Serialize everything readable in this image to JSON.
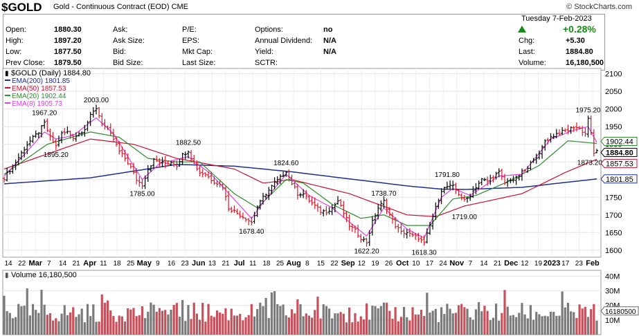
{
  "header": {
    "symbol": "$GOLD",
    "name": "Gold - Continuous Contract (EOD)",
    "exchange": "CME",
    "brand": "© StockCharts.com",
    "date": "Tuesday   7-Feb-2023",
    "change_pct": "+0.28%"
  },
  "quote": {
    "col1": [
      [
        "Open:",
        "1880.30"
      ],
      [
        "High:",
        "1897.20"
      ],
      [
        "Low:",
        "1877.50"
      ],
      [
        "Prev Close:",
        "1879.50"
      ]
    ],
    "col2": [
      [
        "Ask:",
        ""
      ],
      [
        "Ask Size:",
        ""
      ],
      [
        "Bid:",
        ""
      ],
      [
        "Bid Size:",
        ""
      ]
    ],
    "col3": [
      [
        "P/E:",
        ""
      ],
      [
        "EPS:",
        ""
      ],
      [
        "Mkt Cap:",
        ""
      ],
      [
        "Last Size:",
        ""
      ]
    ],
    "col4": [
      [
        "Options:",
        "no"
      ],
      [
        "Annual Dividend:",
        "N/A"
      ],
      [
        "Yield:",
        "N/A"
      ],
      [
        "SCTR:",
        ""
      ]
    ],
    "col5": [
      [
        "Chg:",
        "+5.30"
      ],
      [
        "Last:",
        "1884.80"
      ],
      [
        "Volume:",
        "16,180,500"
      ]
    ]
  },
  "legend": [
    {
      "label": "$GOLD (Daily) 1884.80",
      "color": "#000000"
    },
    {
      "label": "EMA(200) 1801.85",
      "color": "#1f2e8c"
    },
    {
      "label": "EMA(50) 1857.53",
      "color": "#c8102e"
    },
    {
      "label": "EMA(20) 1902.44",
      "color": "#2e8b2e"
    },
    {
      "label": "EMA(8) 1905.73",
      "color": "#e040e0"
    }
  ],
  "volume_legend": "Volume 16,180,500",
  "colors": {
    "up": "#000000",
    "down": "#d11a2a",
    "vol_up": "#7a7a7a",
    "vol_down": "#c9505a"
  },
  "chart_data": {
    "type": "line",
    "x_tick_labels": [
      "14",
      "22",
      "Mar",
      "7",
      "14",
      "21",
      "Apr",
      "11",
      "18",
      "25",
      "May",
      "9",
      "16",
      "23",
      "Jun",
      "13",
      "21",
      "Jul",
      "11",
      "18",
      "25",
      "Aug",
      "8",
      "15",
      "22",
      "Sep",
      "12",
      "19",
      "26",
      "Oct",
      "10",
      "17",
      "24",
      "Nov",
      "7",
      "14",
      "21",
      "Dec",
      "12",
      "19",
      "2023",
      "17",
      "23",
      "Feb"
    ],
    "y_ticks": [
      1600,
      1650,
      1700,
      1750,
      1800,
      1850,
      1900,
      1950,
      2000,
      2050,
      2100
    ],
    "ylim": [
      1580,
      2115
    ],
    "price_path": [
      [
        0,
        1805
      ],
      [
        4,
        1850
      ],
      [
        8,
        1900
      ],
      [
        12,
        1935
      ],
      [
        14,
        1960
      ],
      [
        16,
        1920
      ],
      [
        18,
        1895
      ],
      [
        20,
        1930
      ],
      [
        22,
        1935
      ],
      [
        24,
        1920
      ],
      [
        26,
        1930
      ],
      [
        28,
        1945
      ],
      [
        30,
        1980
      ],
      [
        32,
        2003
      ],
      [
        34,
        1960
      ],
      [
        36,
        1940
      ],
      [
        38,
        1915
      ],
      [
        40,
        1880
      ],
      [
        42,
        1860
      ],
      [
        44,
        1835
      ],
      [
        46,
        1800
      ],
      [
        48,
        1785
      ],
      [
        50,
        1830
      ],
      [
        52,
        1855
      ],
      [
        54,
        1850
      ],
      [
        56,
        1845
      ],
      [
        58,
        1850
      ],
      [
        60,
        1840
      ],
      [
        62,
        1870
      ],
      [
        64,
        1882.5
      ],
      [
        66,
        1845
      ],
      [
        68,
        1820
      ],
      [
        70,
        1815
      ],
      [
        72,
        1800
      ],
      [
        74,
        1790
      ],
      [
        76,
        1780
      ],
      [
        78,
        1720
      ],
      [
        80,
        1710
      ],
      [
        82,
        1700
      ],
      [
        84,
        1690
      ],
      [
        86,
        1678.4
      ],
      [
        88,
        1720
      ],
      [
        90,
        1750
      ],
      [
        92,
        1770
      ],
      [
        94,
        1790
      ],
      [
        96,
        1805
      ],
      [
        98,
        1824.6
      ],
      [
        100,
        1790
      ],
      [
        102,
        1760
      ],
      [
        104,
        1760
      ],
      [
        106,
        1740
      ],
      [
        108,
        1725
      ],
      [
        110,
        1710
      ],
      [
        112,
        1710
      ],
      [
        114,
        1720
      ],
      [
        116,
        1740
      ],
      [
        118,
        1705
      ],
      [
        120,
        1670
      ],
      [
        122,
        1655
      ],
      [
        124,
        1635
      ],
      [
        126,
        1622.2
      ],
      [
        128,
        1680
      ],
      [
        130,
        1720
      ],
      [
        132,
        1738.7
      ],
      [
        134,
        1700
      ],
      [
        136,
        1670
      ],
      [
        138,
        1650
      ],
      [
        140,
        1650
      ],
      [
        142,
        1640
      ],
      [
        144,
        1635
      ],
      [
        146,
        1618.3
      ],
      [
        148,
        1670
      ],
      [
        150,
        1720
      ],
      [
        152,
        1770
      ],
      [
        154,
        1780
      ],
      [
        156,
        1780
      ],
      [
        158,
        1760
      ],
      [
        160,
        1740
      ],
      [
        162,
        1755
      ],
      [
        164,
        1780
      ],
      [
        166,
        1800
      ],
      [
        168,
        1795
      ],
      [
        170,
        1810
      ],
      [
        172,
        1820
      ],
      [
        174,
        1790
      ],
      [
        176,
        1800
      ],
      [
        178,
        1800
      ],
      [
        180,
        1820
      ],
      [
        182,
        1830
      ],
      [
        184,
        1860
      ],
      [
        186,
        1870
      ],
      [
        188,
        1910
      ],
      [
        190,
        1920
      ],
      [
        192,
        1930
      ],
      [
        194,
        1935
      ],
      [
        196,
        1940
      ],
      [
        198,
        1950
      ],
      [
        200,
        1945
      ],
      [
        202,
        1930
      ],
      [
        203,
        1975.2
      ],
      [
        204,
        1930
      ],
      [
        205,
        1873.2
      ],
      [
        206,
        1884.8
      ]
    ],
    "annotations": [
      {
        "label": "1967.20",
        "x": 14,
        "y": 1967.2
      },
      {
        "label": "2003.00",
        "x": 32,
        "y": 2003
      },
      {
        "label": "1895.20",
        "x": 18,
        "y": 1895.2
      },
      {
        "label": "1785.00",
        "x": 48,
        "y": 1785
      },
      {
        "label": "1882.50",
        "x": 64,
        "y": 1882.5
      },
      {
        "label": "1678.40",
        "x": 86,
        "y": 1678.4
      },
      {
        "label": "1824.60",
        "x": 98,
        "y": 1824.6
      },
      {
        "label": "1738.70",
        "x": 132,
        "y": 1738.7
      },
      {
        "label": "1622.20",
        "x": 126,
        "y": 1622.2
      },
      {
        "label": "1618.30",
        "x": 146,
        "y": 1618.3
      },
      {
        "label": "1791.80",
        "x": 154,
        "y": 1791.8
      },
      {
        "label": "1719.00",
        "x": 160,
        "y": 1719
      },
      {
        "label": "1975.20",
        "x": 203,
        "y": 1975.2
      },
      {
        "label": "1873.20",
        "x": 205,
        "y": 1873.2
      }
    ],
    "ema": {
      "ema200": {
        "value": 1801.85,
        "path": [
          [
            0,
            1788
          ],
          [
            30,
            1805
          ],
          [
            60,
            1843
          ],
          [
            80,
            1838
          ],
          [
            100,
            1822
          ],
          [
            120,
            1802
          ],
          [
            140,
            1782
          ],
          [
            152,
            1773
          ],
          [
            160,
            1772
          ],
          [
            180,
            1778
          ],
          [
            206,
            1801.85
          ]
        ]
      },
      "ema50": {
        "value": 1857.53,
        "path": [
          [
            0,
            1830
          ],
          [
            30,
            1915
          ],
          [
            45,
            1900
          ],
          [
            60,
            1860
          ],
          [
            80,
            1830
          ],
          [
            90,
            1790
          ],
          [
            100,
            1800
          ],
          [
            120,
            1760
          ],
          [
            140,
            1700
          ],
          [
            150,
            1695
          ],
          [
            160,
            1725
          ],
          [
            180,
            1760
          ],
          [
            195,
            1820
          ],
          [
            206,
            1857.53
          ]
        ]
      },
      "ema20": {
        "value": 1902.44,
        "path": [
          [
            0,
            1815
          ],
          [
            15,
            1900
          ],
          [
            30,
            1935
          ],
          [
            40,
            1920
          ],
          [
            50,
            1860
          ],
          [
            60,
            1850
          ],
          [
            68,
            1850
          ],
          [
            80,
            1760
          ],
          [
            88,
            1720
          ],
          [
            98,
            1800
          ],
          [
            104,
            1790
          ],
          [
            114,
            1730
          ],
          [
            124,
            1690
          ],
          [
            132,
            1700
          ],
          [
            140,
            1670
          ],
          [
            148,
            1670
          ],
          [
            156,
            1745
          ],
          [
            164,
            1755
          ],
          [
            174,
            1790
          ],
          [
            186,
            1840
          ],
          [
            196,
            1910
          ],
          [
            206,
            1902.44
          ]
        ]
      },
      "ema8": {
        "value": 1905.73,
        "path": [
          [
            0,
            1810
          ],
          [
            8,
            1880
          ],
          [
            14,
            1935
          ],
          [
            18,
            1915
          ],
          [
            24,
            1925
          ],
          [
            32,
            1975
          ],
          [
            38,
            1930
          ],
          [
            48,
            1800
          ],
          [
            54,
            1845
          ],
          [
            64,
            1865
          ],
          [
            72,
            1815
          ],
          [
            86,
            1690
          ],
          [
            90,
            1735
          ],
          [
            98,
            1815
          ],
          [
            106,
            1755
          ],
          [
            114,
            1720
          ],
          [
            126,
            1640
          ],
          [
            132,
            1720
          ],
          [
            140,
            1660
          ],
          [
            146,
            1635
          ],
          [
            152,
            1750
          ],
          [
            156,
            1775
          ],
          [
            162,
            1755
          ],
          [
            172,
            1810
          ],
          [
            180,
            1815
          ],
          [
            190,
            1915
          ],
          [
            198,
            1940
          ],
          [
            203,
            1950
          ],
          [
            206,
            1905.73
          ]
        ]
      }
    },
    "volume": {
      "y_ticks": [
        {
          "label": "40M",
          "v": 40
        },
        {
          "label": "30M",
          "v": 30
        },
        {
          "label": "20M",
          "v": 20
        },
        {
          "label": "10M",
          "v": 10
        }
      ],
      "last_label": "16180500",
      "ylim": [
        0,
        44
      ]
    }
  }
}
